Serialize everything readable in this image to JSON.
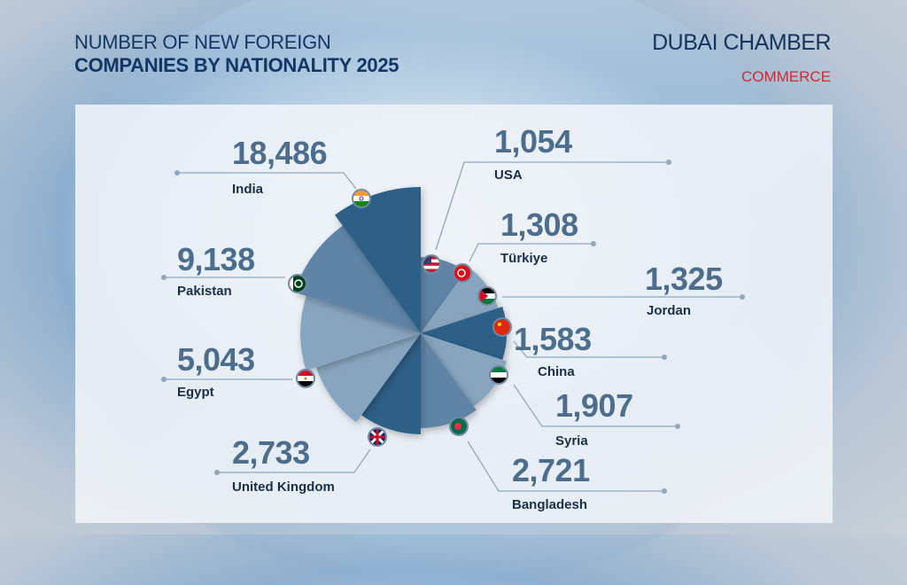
{
  "header": {
    "title_line1": "NUMBER OF NEW FOREIGN",
    "title_line2": "COMPANIES BY NATIONALITY 2025"
  },
  "logo": {
    "main": "DUBAI CHAMBER",
    "sub": "COMMERCE"
  },
  "colors": {
    "dark": "#2f5f86",
    "mid": "#5f84a6",
    "light": "#88a5c0",
    "title": "#123764",
    "accent": "#d7262e",
    "value": "#4d6d8e"
  },
  "chart_data": {
    "type": "polar-area",
    "title": "NUMBER OF NEW FOREIGN COMPANIES BY NATIONALITY 2025",
    "categories": [
      "USA",
      "Türkiye",
      "Jordan",
      "China",
      "Syria",
      "Bangladesh",
      "United Kingdom",
      "Egypt",
      "Pakistan",
      "India"
    ],
    "values": [
      1054,
      1308,
      1325,
      1583,
      1907,
      2721,
      2733,
      5043,
      9138,
      18486
    ],
    "labels": [
      "1,054",
      "1,308",
      "1,325",
      "1,583",
      "1,907",
      "2,721",
      "2,733",
      "5,043",
      "9,138",
      "18,486"
    ],
    "flags": [
      "us-flag-icon",
      "turkey-flag-icon",
      "jordan-flag-icon",
      "china-flag-icon",
      "syria-flag-icon",
      "bangladesh-flag-icon",
      "uk-flag-icon",
      "egypt-flag-icon",
      "pakistan-flag-icon",
      "india-flag-icon"
    ]
  }
}
